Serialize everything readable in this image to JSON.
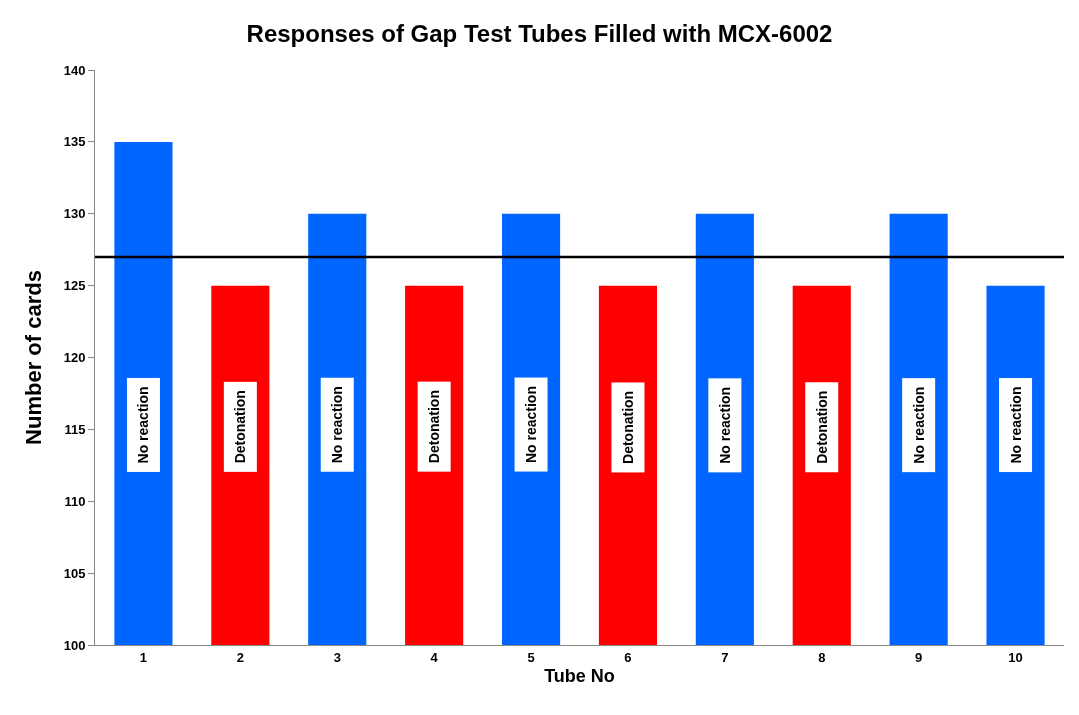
{
  "chart_data": {
    "type": "bar",
    "title": "Responses of Gap Test Tubes Filled with MCX-6002",
    "xlabel": "Tube No",
    "ylabel": "Number of cards",
    "categories": [
      "1",
      "2",
      "3",
      "4",
      "5",
      "6",
      "7",
      "8",
      "9",
      "10"
    ],
    "values": [
      135,
      125,
      130,
      125,
      130,
      125,
      130,
      125,
      130,
      125
    ],
    "colors": [
      "#0066ff",
      "#ff0000",
      "#0066ff",
      "#ff0000",
      "#0066ff",
      "#ff0000",
      "#0066ff",
      "#ff0000",
      "#0066ff",
      "#0066ff"
    ],
    "ylim": [
      100,
      140
    ],
    "yticks": [
      100,
      105,
      110,
      115,
      120,
      125,
      130,
      135,
      140
    ],
    "ref_lines": [
      {
        "axis": "y",
        "value": 127,
        "color": "#000000",
        "line_style": "solid"
      }
    ],
    "annotations": [
      "No reaction",
      "Detonation",
      "No reaction",
      "Detonation",
      "No reaction",
      "Detonation",
      "No reaction",
      "Detonation",
      "No reaction",
      "No reaction"
    ]
  }
}
